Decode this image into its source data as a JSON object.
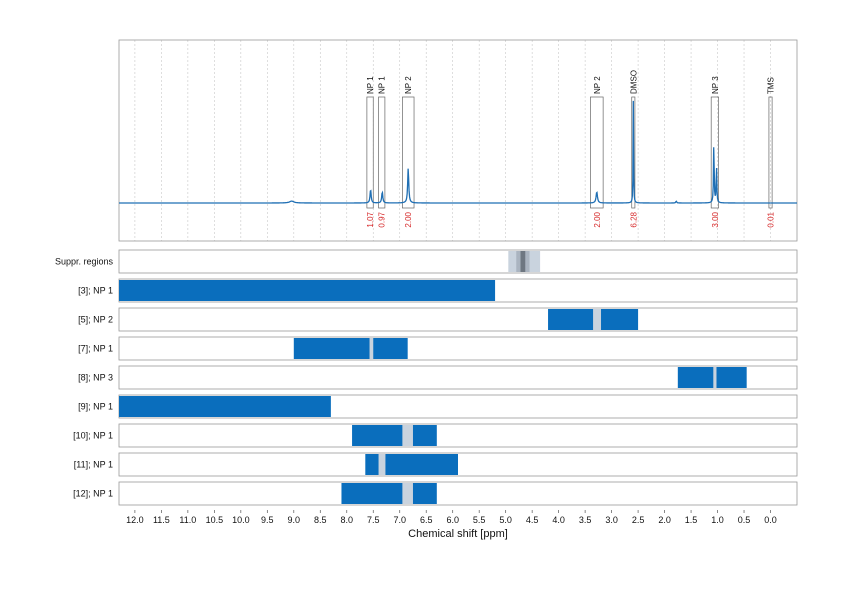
{
  "chart_data": {
    "type": "nmr-spectrum-with-shift-ranges",
    "xlabel": "Chemical shift [ppm]",
    "xlim": [
      12.3,
      -0.5
    ],
    "x_ticks": [
      "12.0",
      "11.5",
      "11.0",
      "10.5",
      "10.0",
      "9.5",
      "9.0",
      "8.5",
      "8.0",
      "7.5",
      "7.0",
      "6.5",
      "6.0",
      "5.5",
      "5.0",
      "4.5",
      "4.0",
      "3.5",
      "3.0",
      "2.5",
      "2.0",
      "1.5",
      "1.0",
      "0.5",
      "0.0"
    ],
    "spectrum": {
      "color": "#1f6fb4",
      "peaks": [
        {
          "shift": 9.04,
          "height": 0.015,
          "width": 0.05
        },
        {
          "shift": 7.55,
          "height": 0.11,
          "width": 0.012
        },
        {
          "shift": 7.33,
          "height": 0.09,
          "width": 0.012
        },
        {
          "shift": 6.84,
          "height": 0.28,
          "width": 0.012
        },
        {
          "shift": 3.28,
          "height": 0.09,
          "width": 0.015
        },
        {
          "shift": 2.59,
          "height": 0.82,
          "width": 0.005
        },
        {
          "shift": 1.78,
          "height": 0.015,
          "width": 0.01
        },
        {
          "shift": 1.07,
          "height": 0.5,
          "width": 0.007
        },
        {
          "shift": 1.02,
          "height": 0.3,
          "width": 0.007
        }
      ]
    },
    "peak_annotations": [
      {
        "label": "NP 1",
        "from": 7.62,
        "to": 7.5,
        "integral": "1.07"
      },
      {
        "label": "NP 1",
        "from": 7.4,
        "to": 7.28,
        "integral": "0.97"
      },
      {
        "label": "NP 2",
        "from": 6.95,
        "to": 6.73,
        "integral": "2.00"
      },
      {
        "label": "NP 2",
        "from": 3.4,
        "to": 3.16,
        "integral": "2.00"
      },
      {
        "label": "DMSO",
        "from": 2.62,
        "to": 2.56,
        "integral": "6.28"
      },
      {
        "label": "NP 3",
        "from": 1.12,
        "to": 0.98,
        "integral": "3.00"
      },
      {
        "label": "TMS",
        "from": 0.03,
        "to": -0.03,
        "integral": "0.01"
      }
    ],
    "rows": [
      {
        "label": "Suppr. regions",
        "ranges": [],
        "suppressed": [
          {
            "from": 4.95,
            "to": 4.35,
            "shade": "light"
          },
          {
            "from": 4.8,
            "to": 4.55,
            "shade": "mid"
          },
          {
            "from": 4.72,
            "to": 4.63,
            "shade": "dark"
          }
        ]
      },
      {
        "label": "[3]; NP 1",
        "ranges": [
          {
            "from": 12.3,
            "to": 5.2
          }
        ],
        "suppressed": []
      },
      {
        "label": "[5]; NP 2",
        "ranges": [
          {
            "from": 4.2,
            "to": 2.5
          }
        ],
        "suppressed": [
          {
            "from": 3.35,
            "to": 3.2,
            "shade": "light"
          }
        ]
      },
      {
        "label": "[7]; NP 1",
        "ranges": [
          {
            "from": 9.0,
            "to": 6.85
          }
        ],
        "suppressed": [
          {
            "from": 7.57,
            "to": 7.5,
            "shade": "light"
          }
        ]
      },
      {
        "label": "[8]; NP 3",
        "ranges": [
          {
            "from": 1.75,
            "to": 0.45
          }
        ],
        "suppressed": [
          {
            "from": 1.08,
            "to": 1.02,
            "shade": "light"
          }
        ]
      },
      {
        "label": "[9]; NP 1",
        "ranges": [
          {
            "from": 12.3,
            "to": 8.3
          }
        ],
        "suppressed": []
      },
      {
        "label": "[10]; NP 1",
        "ranges": [
          {
            "from": 7.9,
            "to": 6.3
          }
        ],
        "suppressed": [
          {
            "from": 6.95,
            "to": 6.75,
            "shade": "light"
          }
        ]
      },
      {
        "label": "[11]; NP 1",
        "ranges": [
          {
            "from": 7.65,
            "to": 5.9
          }
        ],
        "suppressed": [
          {
            "from": 7.4,
            "to": 7.27,
            "shade": "light"
          }
        ]
      },
      {
        "label": "[12]; NP 1",
        "ranges": [
          {
            "from": 8.1,
            "to": 6.3
          }
        ],
        "suppressed": [
          {
            "from": 6.95,
            "to": 6.75,
            "shade": "light"
          }
        ]
      }
    ],
    "colors": {
      "range": "#0a6ebd",
      "suppressed_light": "#c9d3de",
      "suppressed_mid": "#aab4c0",
      "suppressed_dark": "#6e7781",
      "annotation_text": "#111111",
      "integral_text": "#d62728",
      "frame": "#999999",
      "grid": "#c8c8c8"
    },
    "grid": true
  }
}
